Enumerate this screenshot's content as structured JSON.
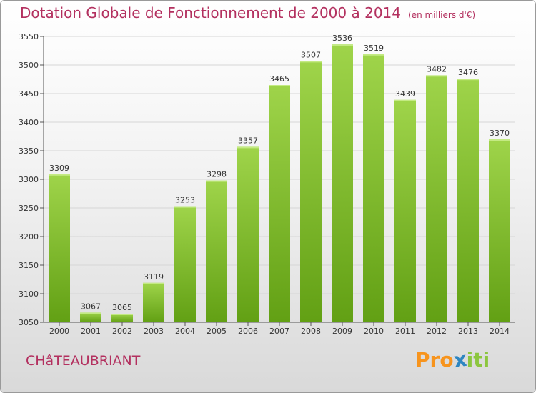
{
  "header": {
    "title": "Dotation Globale de Fonctionnement de 2000 à 2014",
    "unit": "(en milliers d'€)"
  },
  "footer": {
    "commune": "CHâTEAUBRIANT",
    "logo_text": "Proxiti"
  },
  "colors": {
    "title": "#b3305f",
    "bar_top": "#9fd44a",
    "bar_bottom": "#62a014",
    "grid": "#d6d6d6",
    "logo": [
      "#f7941d",
      "#f7941d",
      "#f7941d",
      "#2e86c1",
      "#8cc63f",
      "#8cc63f",
      "#8cc63f"
    ]
  },
  "chart_data": {
    "type": "bar",
    "title": "Dotation Globale de Fonctionnement de 2000 à 2014",
    "subtitle": "(en milliers d'€)",
    "categories": [
      "2000",
      "2001",
      "2002",
      "2003",
      "2004",
      "2005",
      "2006",
      "2007",
      "2008",
      "2009",
      "2010",
      "2011",
      "2012",
      "2013",
      "2014"
    ],
    "values": [
      3309,
      3067,
      3065,
      3119,
      3253,
      3298,
      3357,
      3465,
      3507,
      3536,
      3519,
      3439,
      3482,
      3476,
      3370
    ],
    "ylim": [
      3050,
      3550
    ],
    "yticks": [
      3050,
      3100,
      3150,
      3200,
      3250,
      3300,
      3350,
      3400,
      3450,
      3500,
      3550
    ],
    "grid": true,
    "data_labels": true
  }
}
